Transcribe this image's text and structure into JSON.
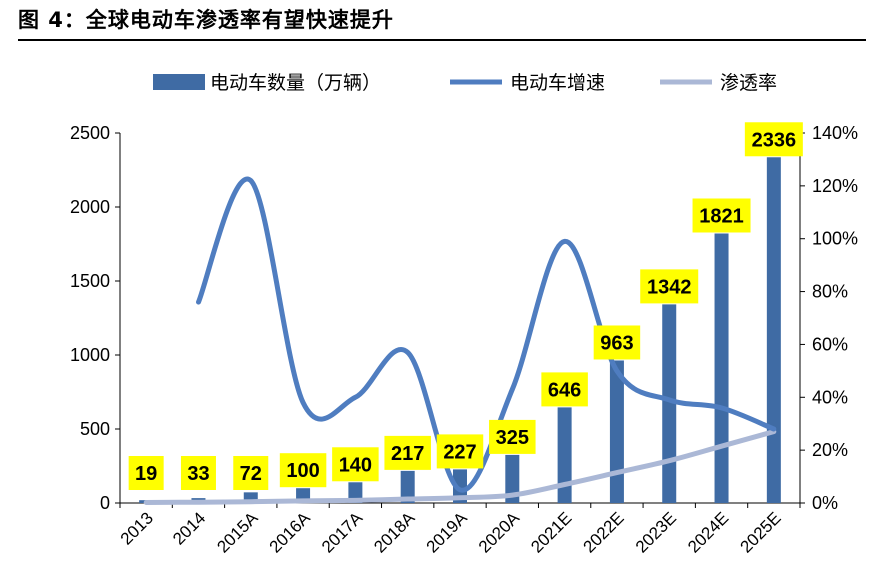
{
  "title": "图 4：全球电动车渗透率有望快速提升",
  "colors": {
    "bar": "#3F6BA4",
    "growth_line": "#4F7DC0",
    "penetration_line": "#ABB8D6",
    "label_bg": "#FFFF00",
    "axis": "#000000"
  },
  "chart_data": {
    "type": "bar",
    "categories": [
      "2013",
      "2014",
      "2015A",
      "2016A",
      "2017A",
      "2018A",
      "2019A",
      "2020A",
      "2021E",
      "2022E",
      "2023E",
      "2024E",
      "2025E"
    ],
    "series": [
      {
        "name": "电动车数量（万辆）",
        "type": "bar",
        "axis": "left",
        "values": [
          19,
          33,
          72,
          100,
          140,
          217,
          227,
          325,
          646,
          963,
          1342,
          1821,
          2336
        ]
      },
      {
        "name": "电动车增速",
        "type": "line",
        "axis": "right",
        "smooth": true,
        "values": [
          null,
          0.76,
          1.22,
          0.38,
          0.4,
          0.57,
          0.05,
          0.43,
          0.99,
          0.5,
          0.39,
          0.36,
          0.28
        ]
      },
      {
        "name": "渗透率",
        "type": "line",
        "axis": "right",
        "smooth": true,
        "values": [
          0.002,
          0.003,
          0.005,
          0.008,
          0.01,
          0.015,
          0.02,
          0.03,
          0.07,
          0.115,
          0.16,
          0.215,
          0.27
        ]
      }
    ],
    "data_labels": [
      "19",
      "33",
      "72",
      "100",
      "140",
      "217",
      "227",
      "325",
      "646",
      "963",
      "1342",
      "1821",
      "2336"
    ],
    "y_left": {
      "min": 0,
      "max": 2500,
      "ticks": [
        "0",
        "500",
        "1000",
        "1500",
        "2000",
        "2500"
      ]
    },
    "y_right": {
      "min": 0,
      "max": 1.4,
      "ticks": [
        "0%",
        "20%",
        "40%",
        "60%",
        "80%",
        "100%",
        "120%",
        "140%"
      ]
    },
    "legend_position": "top",
    "grid": false
  }
}
